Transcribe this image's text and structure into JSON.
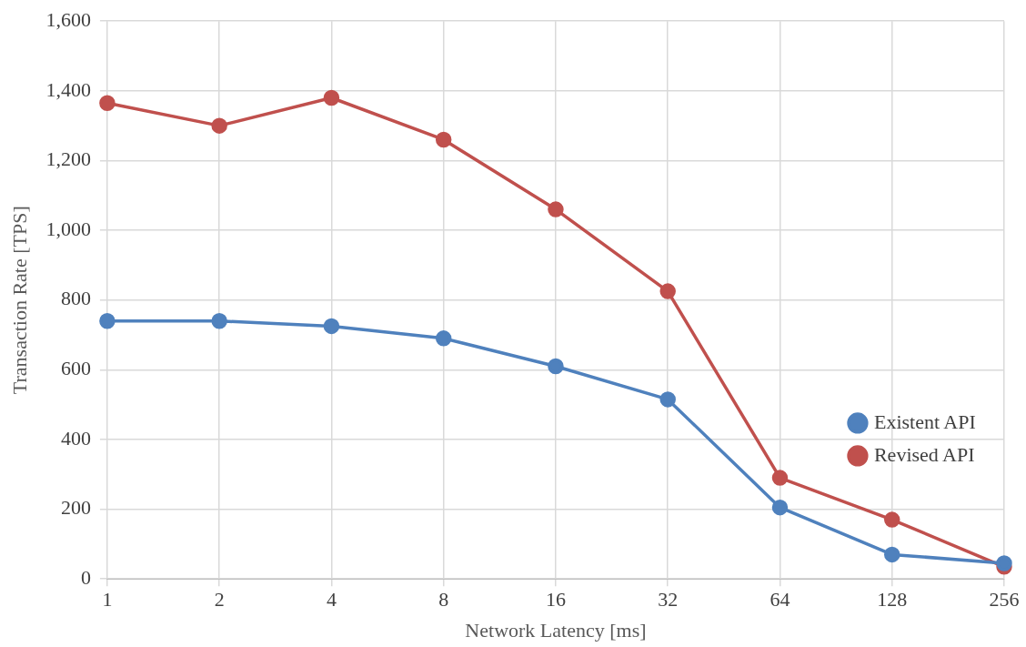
{
  "chart_data": {
    "type": "line",
    "xlabel": "Network Latency [ms]",
    "ylabel": "Transaction Rate [TPS]",
    "categories": [
      "1",
      "2",
      "4",
      "8",
      "16",
      "32",
      "64",
      "128",
      "256"
    ],
    "series": [
      {
        "name": "Existent API",
        "color": "#4f81bd",
        "values": [
          740,
          740,
          725,
          690,
          610,
          515,
          205,
          70,
          45
        ]
      },
      {
        "name": "Revised API",
        "color": "#c0504d",
        "values": [
          1365,
          1300,
          1380,
          1260,
          1060,
          825,
          290,
          170,
          35
        ]
      }
    ],
    "ylim": [
      0,
      1600
    ],
    "yticks": [
      {
        "value": 0,
        "label": "0"
      },
      {
        "value": 200,
        "label": "200"
      },
      {
        "value": 400,
        "label": "400"
      },
      {
        "value": 600,
        "label": "600"
      },
      {
        "value": 800,
        "label": "800"
      },
      {
        "value": 1000,
        "label": "1,000"
      },
      {
        "value": 1200,
        "label": "1,200"
      },
      {
        "value": 1400,
        "label": "1,400"
      },
      {
        "value": 1600,
        "label": "1,600"
      }
    ],
    "grid": true,
    "legend": "right",
    "marker": "circle",
    "line_style": "solid"
  }
}
